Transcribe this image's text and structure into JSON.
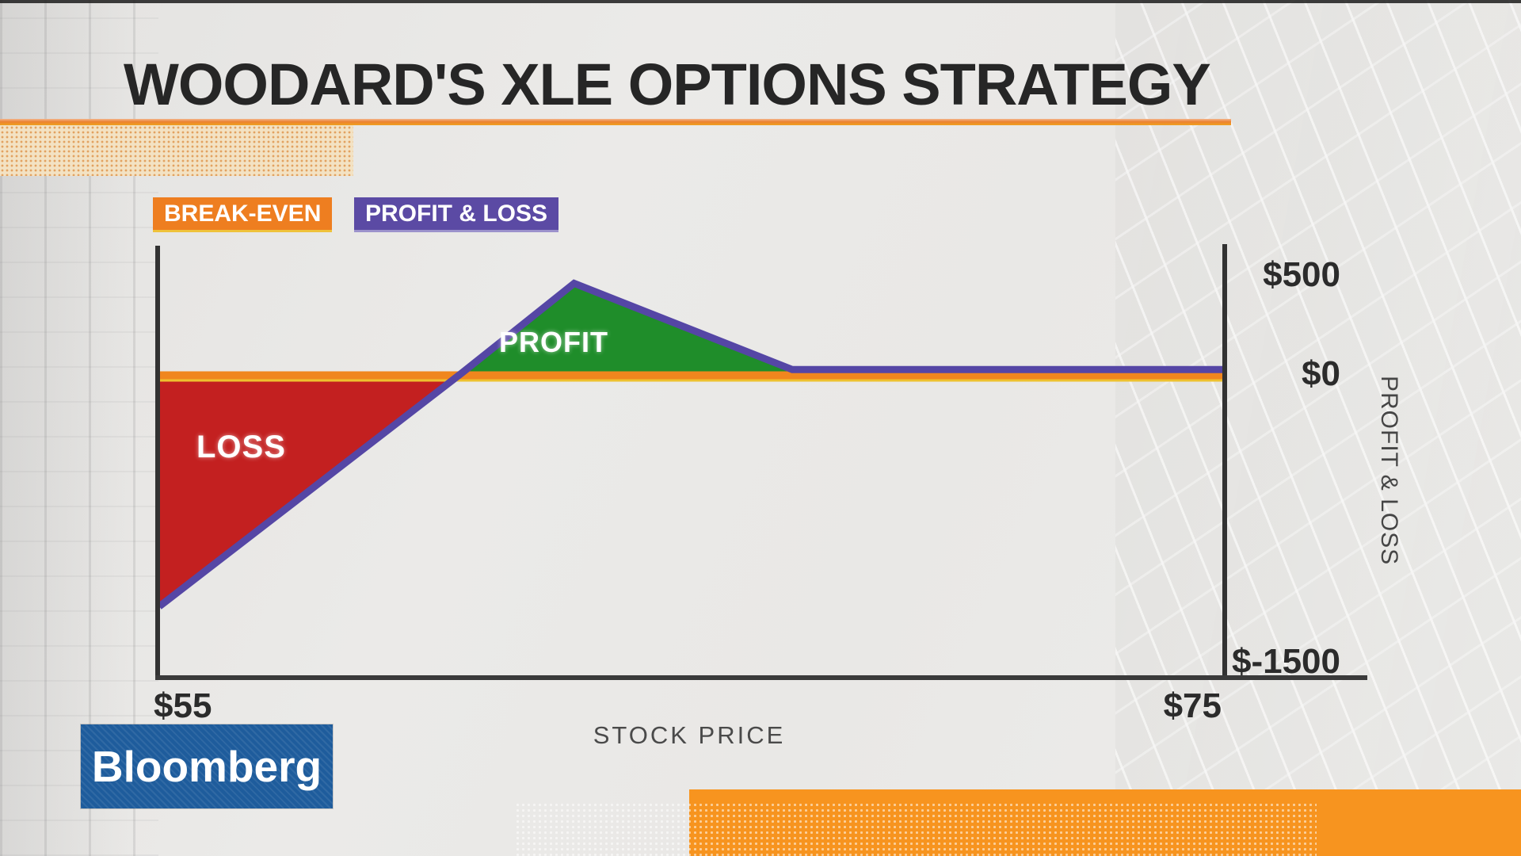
{
  "title": "WOODARD'S XLE OPTIONS STRATEGY",
  "legend": {
    "items": [
      {
        "label": "BREAK-EVEN",
        "color": "#ee7e20",
        "accent": "#efc23b"
      },
      {
        "label": "PROFIT & LOSS",
        "color": "#5b4aa4",
        "accent": "#9c92cc"
      }
    ]
  },
  "logo": {
    "text": "Bloomberg",
    "bg": "#1e5c9c"
  },
  "colors": {
    "breakeven_line": "#f0861e",
    "breakeven_accent": "#eec12f",
    "pnl_line": "#5546a5",
    "loss_fill": "#c32020",
    "profit_fill": "#1f8d2a"
  },
  "chart_data": {
    "type": "area",
    "title": "WOODARD'S XLE OPTIONS STRATEGY",
    "xlabel": "STOCK PRICE",
    "ylabel": "PROFIT & LOSS",
    "x_tick_labels": [
      "$55",
      "$75"
    ],
    "x_tick_values": [
      55,
      75
    ],
    "y_tick_labels": [
      "$500",
      "$0",
      "$-1500"
    ],
    "y_tick_values": [
      500,
      0,
      -1500
    ],
    "xlim": [
      55,
      75
    ],
    "ylim": [
      -1700,
      600
    ],
    "grid": false,
    "legend_position": "top-left",
    "series": [
      {
        "name": "PROFIT & LOSS",
        "type": "line",
        "color": "#5546a5",
        "points": [
          [
            55,
            -1220
          ],
          [
            60.7,
            0
          ],
          [
            62.8,
            450
          ],
          [
            66.9,
            15
          ],
          [
            75,
            15
          ]
        ]
      },
      {
        "name": "BREAK-EVEN",
        "type": "hline",
        "color": "#f0861e",
        "value": 0,
        "span": [
          55,
          75
        ]
      }
    ],
    "regions": [
      {
        "label": "LOSS",
        "color": "#c32020",
        "points": [
          [
            55,
            0
          ],
          [
            60.7,
            0
          ],
          [
            55,
            -1220
          ]
        ]
      },
      {
        "label": "PROFIT",
        "color": "#1f8d2a",
        "points": [
          [
            60.7,
            0
          ],
          [
            62.8,
            450
          ],
          [
            66.9,
            0
          ]
        ]
      }
    ]
  }
}
